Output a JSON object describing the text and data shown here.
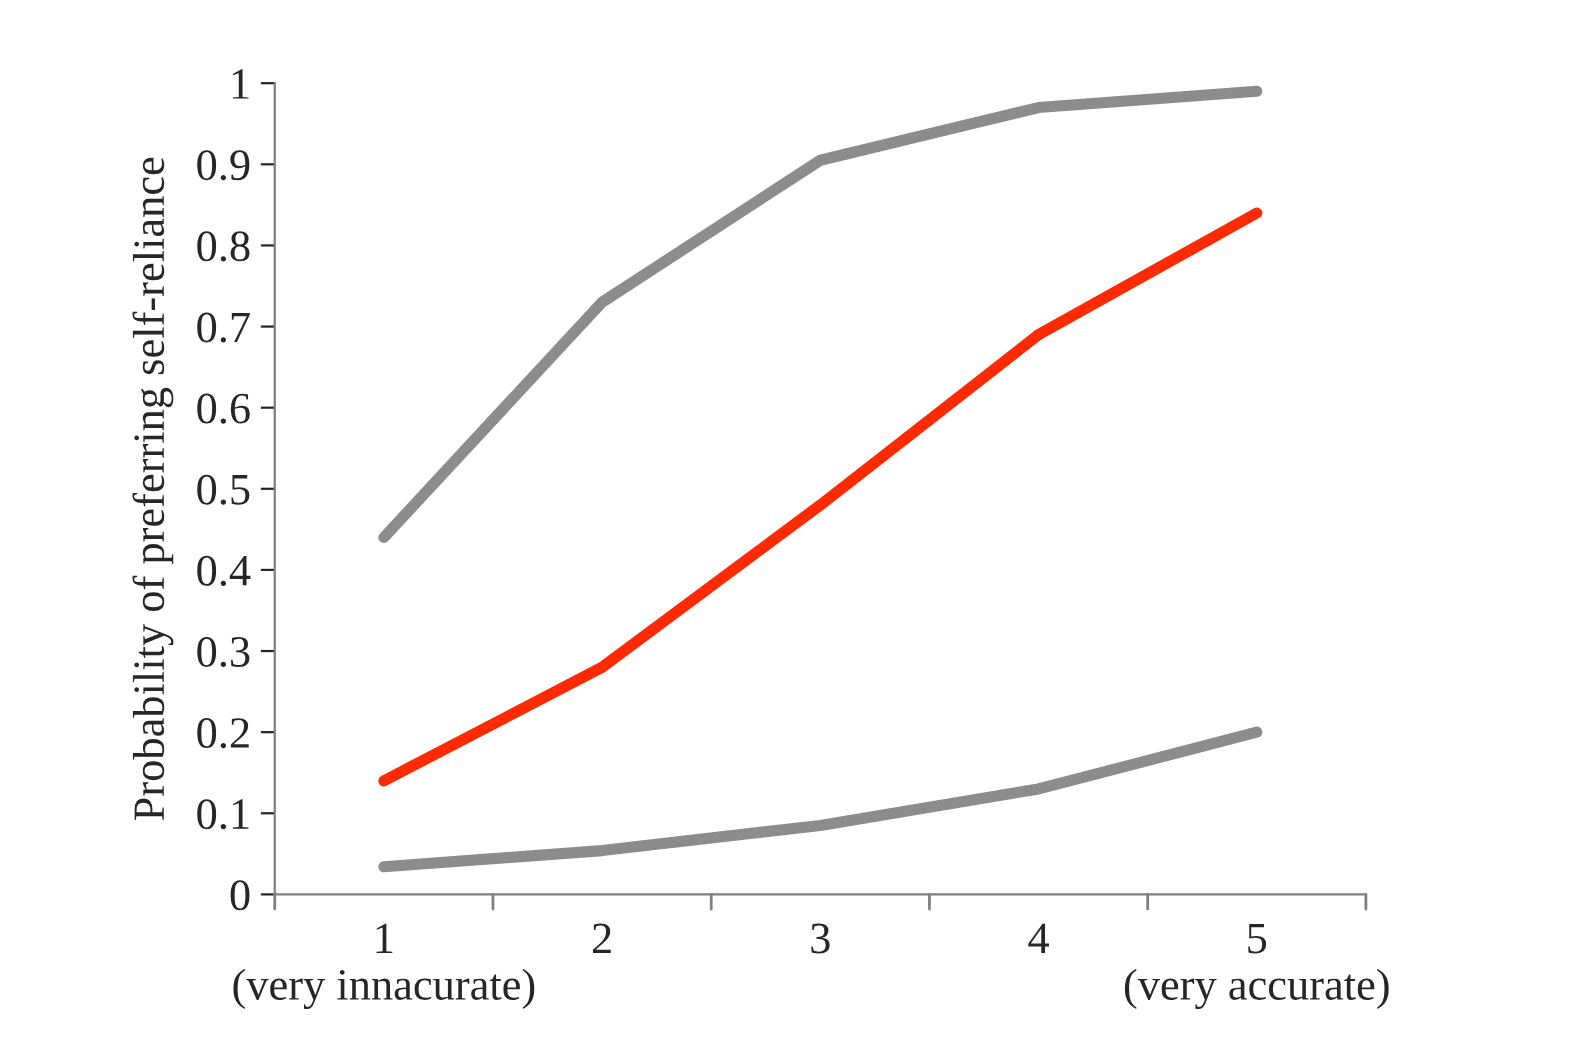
{
  "chart_data": {
    "type": "line",
    "ylabel": "Probability of preferring self-reliance",
    "categories": [
      "1\n(very innacurate)",
      "2",
      "3",
      "4",
      "5\n(very accurate)"
    ],
    "series": [
      {
        "color": "#8c8c8c",
        "values": [
          0.44,
          0.73,
          0.905,
          0.97,
          0.99
        ]
      },
      {
        "color": "#ff2a00",
        "values": [
          0.14,
          0.28,
          0.48,
          0.69,
          0.84
        ]
      },
      {
        "color": "#8c8c8c",
        "values": [
          0.034,
          0.054,
          0.085,
          0.13,
          0.2
        ]
      }
    ],
    "ylim": [
      0,
      1
    ],
    "yticks": [
      0,
      0.1,
      0.2,
      0.3,
      0.4,
      0.5,
      0.6,
      0.7,
      0.8,
      0.9,
      1
    ],
    "grid": false,
    "marker": "none",
    "line_style": "solid"
  }
}
